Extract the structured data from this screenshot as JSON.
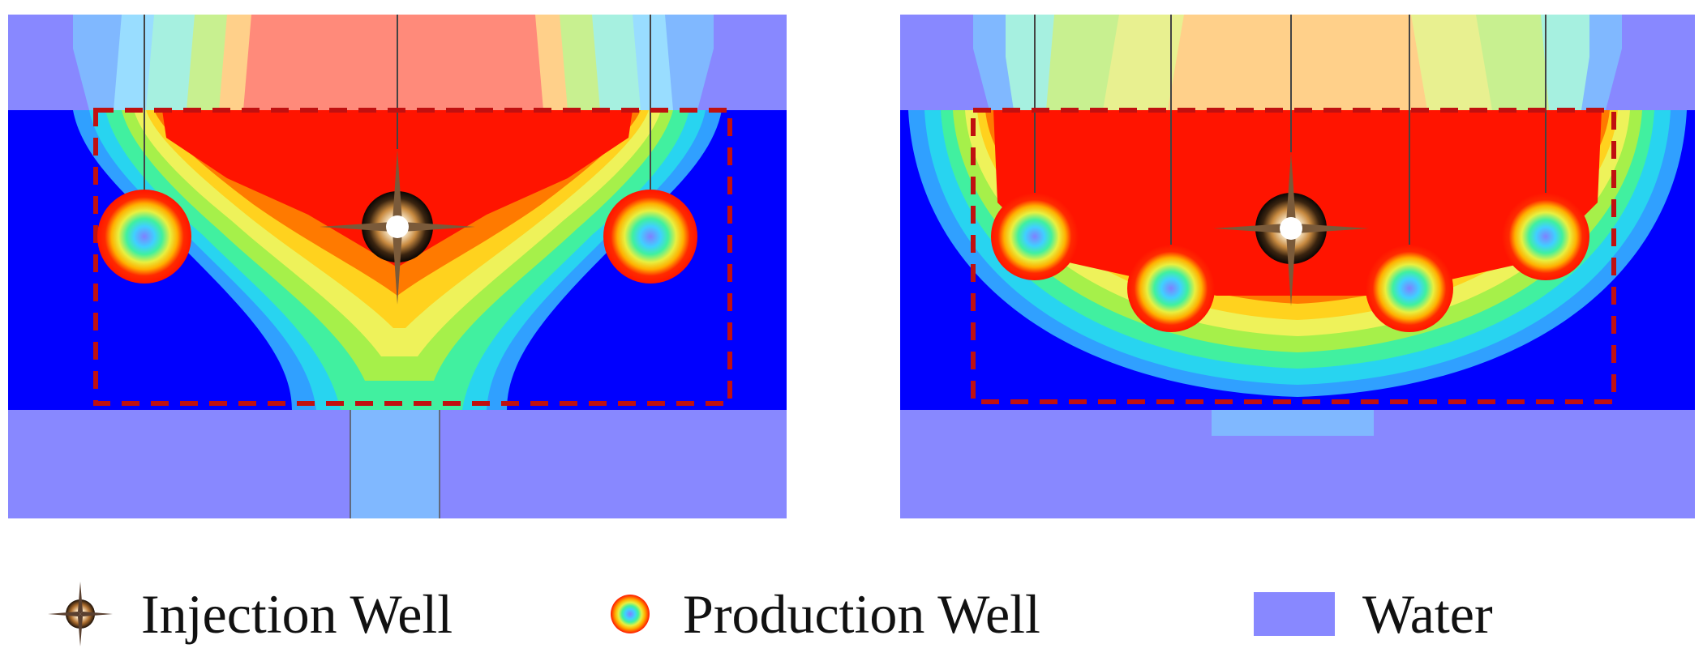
{
  "colors": {
    "water": "#8888ff",
    "water_light": "#80b8ff",
    "reservoir": "#0000ff",
    "steam_chamber": "#ff1400",
    "boundary": "#c01010",
    "well_line": "#444444",
    "gradient": [
      "#ff1400",
      "#ff7a00",
      "#ffd21e",
      "#eef25a",
      "#a6f04a",
      "#41f0a0",
      "#28d4f0",
      "#30a0ff",
      "#1e60ff"
    ]
  },
  "legend": {
    "items": [
      {
        "icon": "injection-well-icon",
        "label": "Injection Well"
      },
      {
        "icon": "production-well-icon",
        "label": "Production Well"
      },
      {
        "icon": "water-swatch",
        "label": "Water"
      }
    ]
  },
  "panels": [
    {
      "id": "left",
      "production_wells": 2,
      "injection_wells": 1
    },
    {
      "id": "right",
      "production_wells": 4,
      "injection_wells": 1
    }
  ]
}
